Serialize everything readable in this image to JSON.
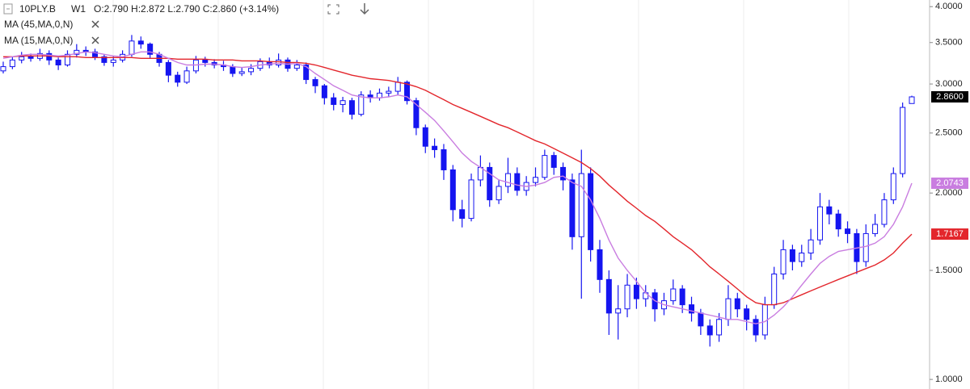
{
  "chart_data": {
    "type": "candlestick",
    "symbol": "10PLY.B",
    "timeframe": "W1",
    "ohlc_text": "O:2.790 H:2.872 L:2.790 C:2.860 (+3.14%)",
    "log_scale": true,
    "color": "#1515f0",
    "ylim": [
      0.965,
      4.1
    ],
    "yticks": [
      {
        "value": 1,
        "label": "1.0000"
      },
      {
        "value": 1.5,
        "label": "1.5000"
      },
      {
        "value": 2,
        "label": "2.0000"
      },
      {
        "value": 2.5,
        "label": "2.5000"
      },
      {
        "value": 3,
        "label": "3.0000"
      },
      {
        "value": 3.5,
        "label": "3.5000"
      },
      {
        "value": 4,
        "label": "4.0000"
      }
    ],
    "price_tag": "2.8600",
    "open": [
      3.15,
      3.2,
      3.28,
      3.32,
      3.3,
      3.36,
      3.28,
      3.22,
      3.35,
      3.4,
      3.38,
      3.32,
      3.25,
      3.28,
      3.35,
      3.52,
      3.48,
      3.35,
      3.25,
      3.1,
      3.02,
      3.15,
      3.28,
      3.25,
      3.22,
      3.2,
      3.12,
      3.14,
      3.18,
      3.26,
      3.22,
      3.28,
      3.18,
      3.22,
      3.05,
      2.98,
      2.85,
      2.78,
      2.82,
      2.68,
      2.88,
      2.85,
      2.9,
      2.92,
      3.02,
      2.82,
      2.55,
      2.38,
      2.35,
      2.18,
      1.88,
      1.82,
      2.1,
      2.2,
      1.95,
      2.05,
      2.15,
      2.02,
      2.08,
      2.12,
      2.3,
      2.2,
      2.1,
      1.7,
      2.15,
      1.62,
      1.45,
      1.28,
      1.3,
      1.42,
      1.35,
      1.38,
      1.3,
      1.34,
      1.4,
      1.32,
      1.28,
      1.22,
      1.18,
      1.25,
      1.35,
      1.3,
      1.25,
      1.18,
      1.32,
      1.48,
      1.62,
      1.55,
      1.6,
      1.68,
      1.9,
      1.85,
      1.75,
      1.72,
      1.55,
      1.72,
      1.78,
      1.95,
      2.15,
      2.79
    ],
    "high": [
      3.26,
      3.32,
      3.38,
      3.36,
      3.42,
      3.4,
      3.31,
      3.4,
      3.48,
      3.45,
      3.42,
      3.35,
      3.33,
      3.4,
      3.6,
      3.58,
      3.5,
      3.38,
      3.28,
      3.14,
      3.2,
      3.33,
      3.32,
      3.29,
      3.27,
      3.23,
      3.19,
      3.23,
      3.3,
      3.31,
      3.36,
      3.31,
      3.28,
      3.25,
      3.08,
      3.0,
      2.9,
      2.86,
      2.85,
      2.92,
      2.93,
      2.95,
      2.97,
      3.08,
      3.04,
      2.85,
      2.58,
      2.45,
      2.4,
      2.22,
      1.95,
      2.15,
      2.3,
      2.24,
      2.1,
      2.28,
      2.2,
      2.13,
      2.2,
      2.35,
      2.33,
      2.24,
      2.15,
      2.35,
      2.2,
      1.68,
      1.5,
      1.42,
      1.48,
      1.46,
      1.42,
      1.4,
      1.38,
      1.45,
      1.42,
      1.36,
      1.3,
      1.25,
      1.28,
      1.42,
      1.38,
      1.32,
      1.27,
      1.36,
      1.52,
      1.68,
      1.65,
      1.65,
      1.75,
      2.0,
      1.95,
      1.88,
      1.8,
      1.75,
      1.78,
      1.85,
      2.0,
      2.2,
      2.8,
      2.872
    ],
    "low": [
      3.12,
      3.17,
      3.24,
      3.26,
      3.27,
      3.22,
      3.16,
      3.2,
      3.31,
      3.33,
      3.28,
      3.21,
      3.2,
      3.25,
      3.32,
      3.42,
      3.3,
      3.2,
      3.02,
      2.97,
      3.0,
      3.12,
      3.2,
      3.18,
      3.15,
      3.08,
      3.09,
      3.1,
      3.15,
      3.18,
      3.19,
      3.14,
      3.15,
      3.0,
      2.9,
      2.78,
      2.72,
      2.7,
      2.63,
      2.66,
      2.8,
      2.82,
      2.86,
      2.88,
      2.78,
      2.48,
      2.32,
      2.28,
      2.1,
      1.8,
      1.76,
      1.8,
      2.05,
      1.9,
      1.92,
      2.0,
      1.98,
      1.98,
      2.05,
      2.1,
      2.14,
      2.02,
      1.62,
      1.35,
      1.55,
      1.38,
      1.18,
      1.16,
      1.26,
      1.3,
      1.31,
      1.24,
      1.27,
      1.32,
      1.28,
      1.24,
      1.18,
      1.13,
      1.15,
      1.22,
      1.26,
      1.2,
      1.15,
      1.16,
      1.3,
      1.45,
      1.5,
      1.52,
      1.56,
      1.65,
      1.78,
      1.7,
      1.66,
      1.48,
      1.52,
      1.7,
      1.76,
      1.92,
      2.12,
      2.79
    ],
    "close": [
      3.2,
      3.28,
      3.32,
      3.3,
      3.36,
      3.28,
      3.22,
      3.35,
      3.4,
      3.38,
      3.32,
      3.25,
      3.28,
      3.35,
      3.52,
      3.48,
      3.35,
      3.25,
      3.1,
      3.02,
      3.15,
      3.28,
      3.25,
      3.22,
      3.2,
      3.12,
      3.14,
      3.18,
      3.26,
      3.22,
      3.28,
      3.18,
      3.22,
      3.05,
      2.98,
      2.85,
      2.78,
      2.82,
      2.68,
      2.88,
      2.85,
      2.9,
      2.92,
      3.02,
      2.82,
      2.55,
      2.38,
      2.35,
      2.18,
      1.88,
      1.82,
      2.1,
      2.2,
      1.95,
      2.05,
      2.15,
      2.02,
      2.08,
      2.12,
      2.3,
      2.2,
      2.1,
      1.7,
      2.15,
      1.62,
      1.45,
      1.28,
      1.3,
      1.42,
      1.35,
      1.38,
      1.3,
      1.34,
      1.4,
      1.32,
      1.28,
      1.22,
      1.18,
      1.25,
      1.35,
      1.3,
      1.25,
      1.18,
      1.32,
      1.48,
      1.62,
      1.55,
      1.6,
      1.68,
      1.9,
      1.85,
      1.75,
      1.72,
      1.55,
      1.72,
      1.78,
      1.95,
      2.15,
      2.75,
      2.86
    ],
    "series": [
      {
        "name": "MA (45,MA,0,N)",
        "color": "#e3262c",
        "tag": "1.7167",
        "values": [
          3.32,
          3.32,
          3.33,
          3.33,
          3.33,
          3.33,
          3.32,
          3.32,
          3.32,
          3.31,
          3.31,
          3.31,
          3.31,
          3.31,
          3.31,
          3.3,
          3.3,
          3.3,
          3.3,
          3.29,
          3.29,
          3.29,
          3.29,
          3.28,
          3.28,
          3.28,
          3.27,
          3.27,
          3.27,
          3.26,
          3.26,
          3.25,
          3.25,
          3.24,
          3.22,
          3.19,
          3.16,
          3.13,
          3.1,
          3.08,
          3.06,
          3.05,
          3.04,
          3.02,
          3.0,
          2.97,
          2.93,
          2.88,
          2.83,
          2.78,
          2.74,
          2.7,
          2.66,
          2.62,
          2.58,
          2.55,
          2.51,
          2.47,
          2.43,
          2.4,
          2.36,
          2.32,
          2.28,
          2.24,
          2.19,
          2.13,
          2.06,
          2.0,
          1.94,
          1.89,
          1.84,
          1.8,
          1.75,
          1.7,
          1.66,
          1.62,
          1.57,
          1.52,
          1.48,
          1.44,
          1.4,
          1.36,
          1.33,
          1.32,
          1.32,
          1.33,
          1.35,
          1.37,
          1.39,
          1.41,
          1.43,
          1.45,
          1.47,
          1.49,
          1.51,
          1.53,
          1.56,
          1.6,
          1.66,
          1.7167
        ]
      },
      {
        "name": "MA (15,MA,0,N)",
        "color": "#c97de0",
        "tag": "2.0743",
        "values": [
          3.3,
          3.32,
          3.34,
          3.35,
          3.35,
          3.34,
          3.33,
          3.34,
          3.36,
          3.38,
          3.37,
          3.35,
          3.33,
          3.32,
          3.35,
          3.38,
          3.38,
          3.35,
          3.3,
          3.25,
          3.22,
          3.22,
          3.23,
          3.23,
          3.22,
          3.2,
          3.19,
          3.2,
          3.22,
          3.23,
          3.24,
          3.23,
          3.24,
          3.2,
          3.12,
          3.05,
          2.98,
          2.93,
          2.88,
          2.86,
          2.85,
          2.85,
          2.86,
          2.88,
          2.86,
          2.78,
          2.7,
          2.62,
          2.52,
          2.42,
          2.32,
          2.25,
          2.2,
          2.15,
          2.1,
          2.08,
          2.06,
          2.05,
          2.06,
          2.08,
          2.12,
          2.13,
          2.08,
          2.05,
          1.95,
          1.82,
          1.68,
          1.57,
          1.5,
          1.44,
          1.38,
          1.34,
          1.32,
          1.31,
          1.3,
          1.29,
          1.28,
          1.27,
          1.26,
          1.25,
          1.25,
          1.24,
          1.23,
          1.24,
          1.27,
          1.31,
          1.36,
          1.42,
          1.48,
          1.54,
          1.58,
          1.61,
          1.62,
          1.63,
          1.64,
          1.66,
          1.7,
          1.78,
          1.9,
          2.0743
        ]
      }
    ]
  }
}
